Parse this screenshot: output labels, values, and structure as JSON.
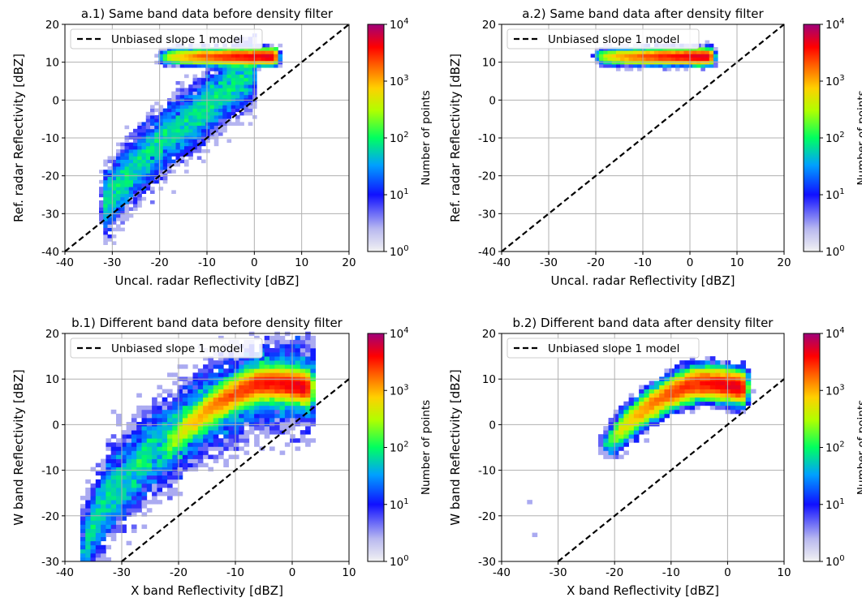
{
  "chart_data": [
    {
      "type": "heatmap",
      "panel": "a.1",
      "title": "a.1) Same band data before density filter",
      "xlabel": "Uncal. radar Reflectivity [dBZ]",
      "ylabel": "Ref. radar Reflectivity [dBZ]",
      "xlim": [
        -40,
        20
      ],
      "ylim": [
        -40,
        20
      ],
      "xticks": [
        -40,
        -30,
        -20,
        -10,
        0,
        10,
        20
      ],
      "yticks": [
        -40,
        -30,
        -20,
        -10,
        0,
        10,
        20
      ],
      "grid": true,
      "legend": {
        "placement": "top-left",
        "entries": [
          "Unbiased slope 1 model"
        ]
      },
      "reference_line": {
        "name": "Unbiased slope 1 model",
        "slope": 1,
        "intercept": 0
      },
      "density_core": [
        [
          4.5,
          11.5
        ],
        [
          -2,
          5
        ],
        [
          -8,
          -1
        ],
        [
          -13,
          -6
        ],
        [
          -16,
          -8
        ],
        [
          -20,
          -11
        ]
      ],
      "density_spread": [
        [
          -32,
          -28
        ],
        [
          -30,
          -25
        ],
        [
          -27,
          -20
        ],
        [
          -22,
          -14
        ],
        [
          -18,
          -9
        ],
        [
          -12,
          -4
        ],
        [
          -6,
          3
        ],
        [
          0,
          8
        ]
      ],
      "colorbar": {
        "label": "Number of points",
        "scale": "log",
        "min": 1,
        "max": 10000,
        "ticks": [
          "10^0",
          "10^1",
          "10^2",
          "10^3",
          "10^4"
        ]
      }
    },
    {
      "type": "heatmap",
      "panel": "a.2",
      "title": "a.2) Same band data after density filter",
      "xlabel": "Uncal. radar Reflectivity [dBZ]",
      "ylabel": "Ref. radar Reflectivity [dBZ]",
      "xlim": [
        -40,
        20
      ],
      "ylim": [
        -40,
        20
      ],
      "xticks": [
        -40,
        -30,
        -20,
        -10,
        0,
        10,
        20
      ],
      "yticks": [
        -40,
        -30,
        -20,
        -10,
        0,
        10,
        20
      ],
      "grid": true,
      "legend": {
        "placement": "top-left",
        "entries": [
          "Unbiased slope 1 model"
        ]
      },
      "reference_line": {
        "name": "Unbiased slope 1 model",
        "slope": 1,
        "intercept": 0
      },
      "density_core": [
        [
          4.5,
          11.5
        ],
        [
          -2,
          5
        ],
        [
          -8,
          -1
        ],
        [
          -13,
          -6
        ],
        [
          -16,
          -8
        ],
        [
          -20,
          -11
        ]
      ],
      "colorbar": {
        "label": "Number of points",
        "scale": "log",
        "min": 1,
        "max": 10000,
        "ticks": [
          "10^0",
          "10^1",
          "10^2",
          "10^3",
          "10^4"
        ]
      }
    },
    {
      "type": "heatmap",
      "panel": "b.1",
      "title": "b.1) Different band data before density filter",
      "xlabel": "X band Reflectivity [dBZ]",
      "ylabel": "W band Reflectivity [dBZ]",
      "xlim": [
        -40,
        10
      ],
      "ylim": [
        -30,
        20
      ],
      "xticks": [
        -40,
        -30,
        -20,
        -10,
        0,
        10
      ],
      "yticks": [
        -30,
        -20,
        -10,
        0,
        10,
        20
      ],
      "grid": true,
      "legend": {
        "placement": "top-left",
        "entries": [
          "Unbiased slope 1 model"
        ]
      },
      "reference_line": {
        "name": "Unbiased slope 1 model",
        "slope": 1,
        "intercept": 0
      },
      "density_core": [
        [
          -22,
          -5
        ],
        [
          -18,
          0
        ],
        [
          -14,
          4
        ],
        [
          -10,
          7
        ],
        [
          -6,
          9
        ],
        [
          -2,
          9
        ],
        [
          3,
          8
        ]
      ],
      "density_spread": [
        [
          -37,
          -28
        ],
        [
          -35,
          -22
        ],
        [
          -32,
          -15
        ],
        [
          -28,
          -10
        ],
        [
          -25,
          -6
        ],
        [
          -20,
          -2
        ],
        [
          -15,
          3
        ],
        [
          -10,
          6
        ],
        [
          -5,
          9
        ],
        [
          0,
          9
        ],
        [
          4,
          8
        ]
      ],
      "colorbar": {
        "label": "Number of points",
        "scale": "log",
        "min": 1,
        "max": 10000,
        "ticks": [
          "10^0",
          "10^1",
          "10^2",
          "10^3",
          "10^4"
        ]
      }
    },
    {
      "type": "heatmap",
      "panel": "b.2",
      "title": "b.2) Different band data after density filter",
      "xlabel": "X band Reflectivity [dBZ]",
      "ylabel": "W band Reflectivity [dBZ]",
      "xlim": [
        -40,
        10
      ],
      "ylim": [
        -30,
        20
      ],
      "xticks": [
        -40,
        -30,
        -20,
        -10,
        0,
        10
      ],
      "yticks": [
        -30,
        -20,
        -10,
        0,
        10,
        20
      ],
      "grid": true,
      "legend": {
        "placement": "top-left",
        "entries": [
          "Unbiased slope 1 model"
        ]
      },
      "reference_line": {
        "name": "Unbiased slope 1 model",
        "slope": 1,
        "intercept": 0
      },
      "density_core": [
        [
          -22,
          -5
        ],
        [
          -18,
          0
        ],
        [
          -14,
          4
        ],
        [
          -10,
          7
        ],
        [
          -6,
          9
        ],
        [
          -2,
          9
        ],
        [
          3,
          8
        ]
      ],
      "outliers": [
        [
          -35,
          -17
        ],
        [
          -34,
          -24
        ]
      ],
      "colorbar": {
        "label": "Number of points",
        "scale": "log",
        "min": 1,
        "max": 10000,
        "ticks": [
          "10^0",
          "10^1",
          "10^2",
          "10^3",
          "10^4"
        ]
      }
    }
  ]
}
